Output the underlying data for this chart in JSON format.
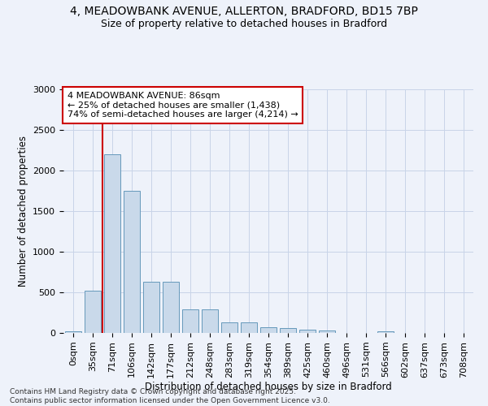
{
  "title_line1": "4, MEADOWBANK AVENUE, ALLERTON, BRADFORD, BD15 7BP",
  "title_line2": "Size of property relative to detached houses in Bradford",
  "xlabel": "Distribution of detached houses by size in Bradford",
  "ylabel": "Number of detached properties",
  "bar_color": "#c9d9ea",
  "bar_edge_color": "#6699bb",
  "grid_color": "#c8d4e8",
  "background_color": "#eef2fa",
  "annotation_box_color": "#cc0000",
  "vline_color": "#cc0000",
  "vline_x": 1.5,
  "annotation_text": "4 MEADOWBANK AVENUE: 86sqm\n← 25% of detached houses are smaller (1,438)\n74% of semi-detached houses are larger (4,214) →",
  "footnote": "Contains HM Land Registry data © Crown copyright and database right 2025.\nContains public sector information licensed under the Open Government Licence v3.0.",
  "categories": [
    "0sqm",
    "35sqm",
    "71sqm",
    "106sqm",
    "142sqm",
    "177sqm",
    "212sqm",
    "248sqm",
    "283sqm",
    "319sqm",
    "354sqm",
    "389sqm",
    "425sqm",
    "460sqm",
    "496sqm",
    "531sqm",
    "566sqm",
    "602sqm",
    "637sqm",
    "673sqm",
    "708sqm"
  ],
  "values": [
    25,
    520,
    2200,
    1750,
    630,
    630,
    295,
    295,
    135,
    130,
    75,
    60,
    45,
    35,
    0,
    0,
    25,
    0,
    0,
    0,
    0
  ],
  "ylim": [
    0,
    3000
  ],
  "yticks": [
    0,
    500,
    1000,
    1500,
    2000,
    2500,
    3000
  ],
  "title_fontsize": 10,
  "subtitle_fontsize": 9,
  "axis_label_fontsize": 8.5,
  "tick_fontsize": 8,
  "footnote_fontsize": 6.5
}
